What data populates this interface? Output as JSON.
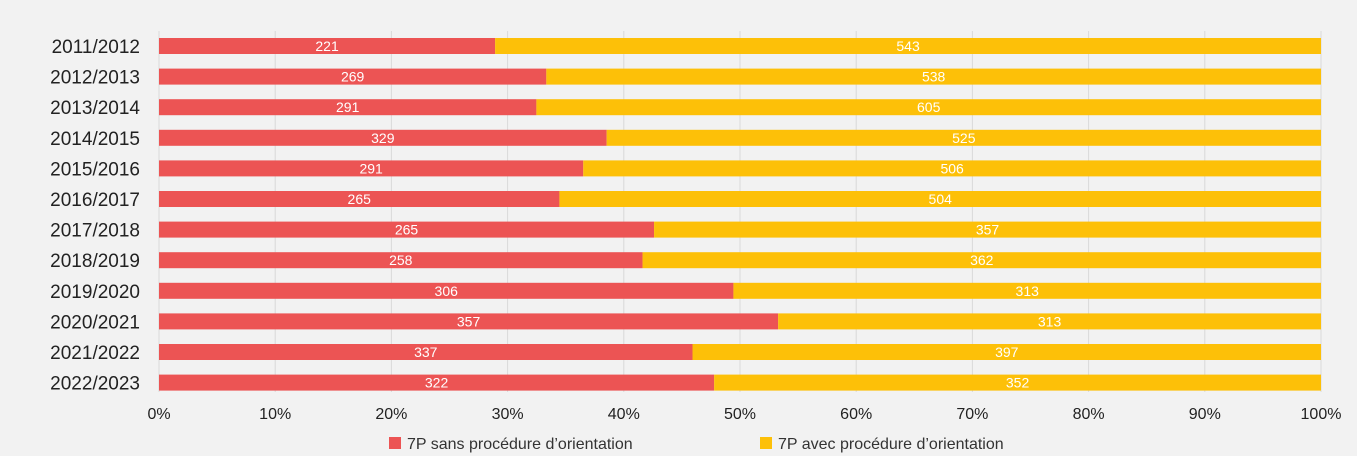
{
  "colors": {
    "series_1": "#ec5454",
    "series_2": "#fdc008",
    "grid": "#d9d9d9",
    "background": "#f2f2f2"
  },
  "chart_data": {
    "type": "bar",
    "orientation": "horizontal",
    "stacked": "percent",
    "categories": [
      "2011/2012",
      "2012/2013",
      "2013/2014",
      "2014/2015",
      "2015/2016",
      "2016/2017",
      "2017/2018",
      "2018/2019",
      "2019/2020",
      "2020/2021",
      "2021/2022",
      "2022/2023"
    ],
    "series": [
      {
        "name": "7P sans procédure d’orientation",
        "values": [
          221,
          269,
          291,
          329,
          291,
          265,
          265,
          258,
          306,
          357,
          337,
          322
        ]
      },
      {
        "name": "7P avec procédure d’orientation",
        "values": [
          543,
          538,
          605,
          525,
          506,
          504,
          357,
          362,
          313,
          313,
          397,
          352
        ]
      }
    ],
    "x_ticks": [
      "0%",
      "10%",
      "20%",
      "30%",
      "40%",
      "50%",
      "60%",
      "70%",
      "80%",
      "90%",
      "100%"
    ],
    "xlim": [
      0,
      100
    ],
    "title": "",
    "xlabel": "",
    "ylabel": "",
    "grid": true,
    "legend": "bottom"
  }
}
